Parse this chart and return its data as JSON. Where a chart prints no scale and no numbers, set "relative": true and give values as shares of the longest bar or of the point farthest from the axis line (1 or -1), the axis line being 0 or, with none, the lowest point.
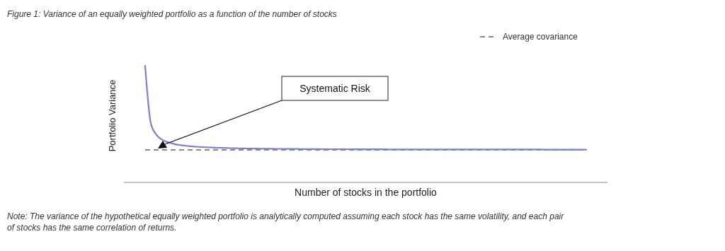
{
  "chart_data": {
    "type": "line",
    "title": "Figure 1: Variance of an equally weighted portfolio as a function of the number of stocks",
    "xlabel": "Number of stocks in the portfolio",
    "ylabel": "Portfolio Variance",
    "relative": true,
    "categories": [
      null,
      null,
      null,
      null,
      null,
      null,
      null,
      null,
      null,
      null,
      null,
      null,
      null,
      null,
      null,
      null,
      null,
      null,
      null,
      null,
      null,
      null,
      null,
      null,
      null,
      null,
      null,
      null,
      null,
      null,
      null,
      null,
      null,
      null,
      null,
      null,
      null,
      null,
      null,
      null,
      null,
      null,
      null,
      null,
      null,
      null,
      null,
      null,
      null,
      null,
      null,
      null,
      null,
      null,
      null,
      null,
      null,
      null,
      null,
      null,
      null,
      null,
      null,
      null,
      null,
      null,
      null,
      null,
      null,
      null,
      null,
      null,
      null,
      null,
      null,
      null,
      null,
      null,
      null
    ],
    "series": [
      {
        "color": "#7b7fcc",
        "values": [
          1,
          0.508,
          0.408,
          0.366,
          0.345,
          0.331,
          0.321,
          0.315,
          0.31,
          0.306,
          0.303,
          0.301,
          0.299,
          0.297,
          0.296,
          0.294,
          0.293,
          0.292,
          0.291,
          0.29,
          0.29,
          0.289,
          0.289,
          0.288,
          0.288,
          0.287,
          0.287,
          0.287,
          0.286,
          0.286,
          0.286,
          0.285,
          0.285,
          0.285,
          0.285,
          0.285,
          0.285,
          0.284,
          0.284,
          0.284,
          0.284,
          0.284,
          0.284,
          0.283,
          0.283,
          0.283,
          0.283,
          0.283,
          0.283,
          0.283,
          0.283,
          0.283,
          0.283,
          0.283,
          0.283,
          0.283,
          0.282,
          0.282,
          0.282,
          0.282,
          0.282,
          0.282,
          0.282,
          0.282,
          0.282,
          0.282,
          0.282,
          0.282,
          0.282,
          0.282,
          0.282,
          0.281,
          0.281,
          0.281,
          0.281,
          0.281,
          0.281,
          0.281,
          0.281
        ]
      }
    ],
    "ref_lines": [
      {
        "axis": "y",
        "value": 0.279,
        "label": "Average covariance",
        "color": "#8a8a8a",
        "line_style": "dashed"
      }
    ],
    "legend": "top right",
    "marker": "none",
    "grid": false,
    "annotations": [
      "Systematic Risk",
      "Note: The variance of the hypothetical equally weighted portfolio is analytically computed assuming each stock has the same volatility, and each pair of stocks has the same correlation of returns."
    ]
  }
}
